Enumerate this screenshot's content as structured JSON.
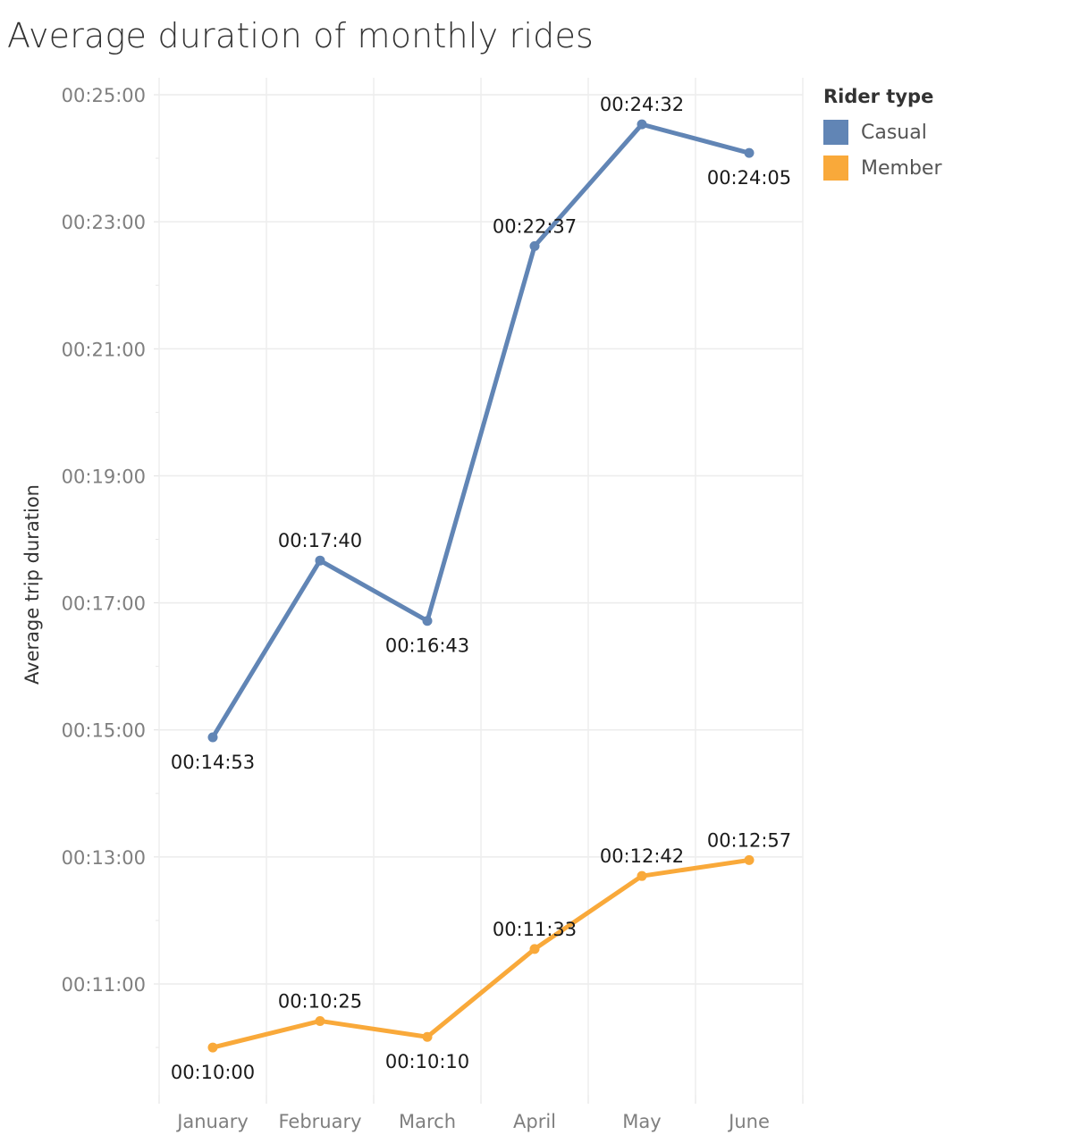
{
  "chart_data": {
    "type": "line",
    "title": "Average duration of monthly rides",
    "ylabel": "Average trip duration",
    "xlabel": "",
    "categories": [
      "January",
      "February",
      "March",
      "April",
      "May",
      "June"
    ],
    "y_ticks": [
      "00:11:00",
      "00:13:00",
      "00:15:00",
      "00:17:00",
      "00:19:00",
      "00:21:00",
      "00:23:00",
      "00:25:00"
    ],
    "y_tick_seconds": [
      660,
      780,
      900,
      1020,
      1140,
      1260,
      1380,
      1500
    ],
    "ylim_seconds": [
      540,
      1500
    ],
    "grid": true,
    "legend_position": "top-right",
    "legend_title": "Rider type",
    "series": [
      {
        "name": "Casual",
        "color": "#6185b5",
        "values": [
          893,
          1060,
          1003,
          1357,
          1472,
          1445
        ],
        "labels": [
          "00:14:53",
          "00:17:40",
          "00:16:43",
          "00:22:37",
          "00:24:32",
          "00:24:05"
        ],
        "label_positions": [
          "below",
          "above",
          "below",
          "above",
          "above",
          "below"
        ]
      },
      {
        "name": "Member",
        "color": "#f9a93a",
        "values": [
          600,
          625,
          610,
          693,
          762,
          777
        ],
        "labels": [
          "00:10:00",
          "00:10:25",
          "00:10:10",
          "00:11:33",
          "00:12:42",
          "00:12:57"
        ],
        "label_positions": [
          "below",
          "above",
          "below",
          "above",
          "above",
          "above"
        ]
      }
    ]
  }
}
